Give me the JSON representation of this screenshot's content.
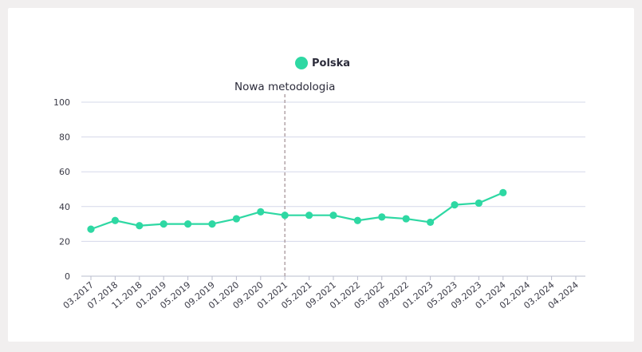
{
  "chart_data": {
    "type": "line",
    "categories": [
      "03.2017",
      "07.2018",
      "11.2018",
      "01.2019",
      "05.2019",
      "09.2019",
      "01.2020",
      "09.2020",
      "01.2021",
      "05.2021",
      "09.2021",
      "01.2022",
      "05.2022",
      "09.2022",
      "01.2023",
      "05.2023",
      "09.2023",
      "01.2024",
      "02.2024",
      "03.2024",
      "04.2024"
    ],
    "series": [
      {
        "name": "Polska",
        "color": "#2ed8a3",
        "values": [
          27,
          32,
          29,
          30,
          30,
          30,
          33,
          37,
          35,
          35,
          35,
          32,
          34,
          33,
          31,
          41,
          42,
          48,
          null,
          null,
          null
        ]
      }
    ],
    "ylim": [
      0,
      100
    ],
    "yticks": [
      0,
      20,
      40,
      60,
      80,
      100
    ],
    "grid": true,
    "legend": "top-center",
    "annotation": {
      "label": "Nowa metodologia",
      "at_category": "01.2021"
    },
    "colors": {
      "line": "#2ed8a3",
      "grid": "#d5d8ea",
      "annotation_line": "#b3a4a8"
    }
  }
}
